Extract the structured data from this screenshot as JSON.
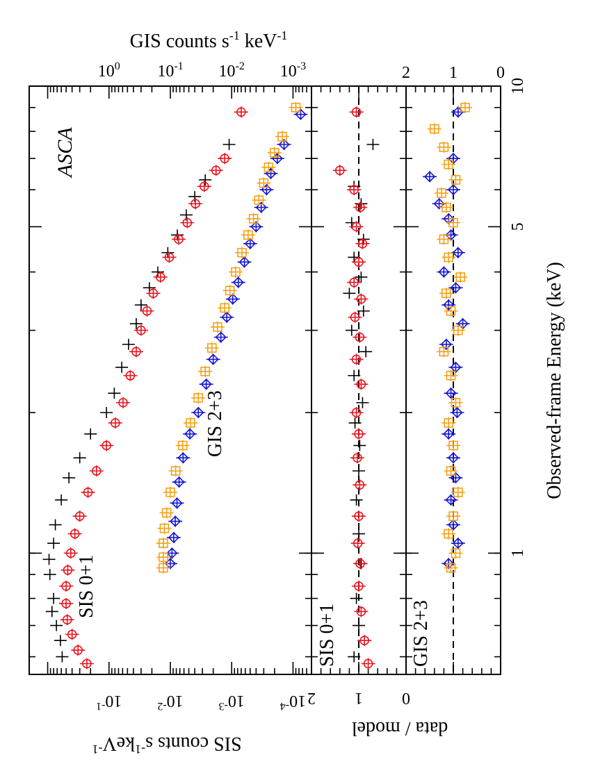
{
  "chart_data": {
    "type": "scatter",
    "orientation": "rotated 90 degrees counter-clockwise (energy axis runs vertically, increasing upward)",
    "instrument_label": "ASCA",
    "energy_axis": {
      "label": "Observed-frame Energy  (keV)",
      "scale": "log",
      "range_keV": [
        0.55,
        10
      ],
      "major_ticks": [
        1,
        5,
        10
      ],
      "tick_labels": [
        "1",
        "5",
        "10"
      ]
    },
    "panels": [
      {
        "name": "spectrum",
        "sis_axis": {
          "label_main": "SIS  counts  s",
          "label_exp1": "-1",
          "label_mid": "keV",
          "label_exp2": "-1",
          "scale": "log",
          "range": [
            5e-05,
            2
          ],
          "tick_values": [
            0.1,
            0.01,
            0.001,
            0.0001
          ],
          "tick_base": "10",
          "tick_exponents": [
            "-1",
            "-2",
            "-3",
            "-4"
          ]
        },
        "gis_axis": {
          "label_main": "GIS  counts  s",
          "label_exp1": "-1",
          "label_mid": "  keV",
          "label_exp2": "-1",
          "scale": "log",
          "range": [
            0.0005,
            20
          ],
          "tick_values": [
            1,
            0.1,
            0.01,
            0.001
          ],
          "tick_base": "10",
          "tick_exponents": [
            "0",
            "-1",
            "-2",
            "-3"
          ]
        },
        "annotations": [
          "SIS 0+1",
          "GIS 2+3"
        ],
        "series": [
          {
            "name": "SIS0",
            "color": "#000000",
            "marker": "cross",
            "x": [
              0.6,
              0.65,
              0.7,
              0.75,
              0.8,
              0.9,
              0.97,
              1.05,
              1.15,
              1.3,
              1.45,
              1.6,
              1.8,
              2.0,
              2.2,
              2.5,
              2.8,
              3.1,
              3.4,
              3.7,
              4.0,
              4.4,
              4.8,
              5.3,
              5.8,
              6.3,
              7.5
            ],
            "y": [
              0.58,
              0.62,
              0.72,
              0.85,
              0.8,
              0.92,
              0.95,
              0.8,
              0.75,
              0.6,
              0.45,
              0.3,
              0.2,
              0.11,
              0.082,
              0.062,
              0.048,
              0.036,
              0.03,
              0.022,
              0.016,
              0.011,
              0.0077,
              0.0055,
              0.004,
              0.0027,
              0.0011
            ]
          },
          {
            "name": "SIS1",
            "color": "#e8141e",
            "marker": "circle-plus",
            "x": [
              0.58,
              0.62,
              0.67,
              0.72,
              0.78,
              0.85,
              0.92,
              1.0,
              1.1,
              1.2,
              1.35,
              1.5,
              1.7,
              1.9,
              2.1,
              2.4,
              2.7,
              3.0,
              3.3,
              3.6,
              3.9,
              4.3,
              4.7,
              5.1,
              5.6,
              6.1,
              6.6,
              7.0,
              8.8
            ],
            "y": [
              0.23,
              0.32,
              0.4,
              0.48,
              0.5,
              0.5,
              0.47,
              0.42,
              0.36,
              0.3,
              0.22,
              0.16,
              0.11,
              0.079,
              0.059,
              0.045,
              0.036,
              0.03,
              0.024,
              0.019,
              0.0145,
              0.0104,
              0.0073,
              0.0053,
              0.0039,
              0.0028,
              0.0018,
              0.0013,
              0.0007
            ]
          },
          {
            "name": "GIS2",
            "color": "#1414d2",
            "marker": "diamond-plus",
            "x": [
              0.95,
              1.0,
              1.08,
              1.17,
              1.28,
              1.42,
              1.6,
              1.8,
              2.0,
              2.3,
              2.6,
              2.9,
              3.2,
              3.5,
              3.8,
              4.2,
              4.6,
              5.0,
              5.5,
              6.0,
              6.5,
              7.0,
              7.5,
              8.7
            ],
            "y": [
              0.1,
              0.094,
              0.088,
              0.083,
              0.078,
              0.072,
              0.062,
              0.048,
              0.035,
              0.026,
              0.02,
              0.015,
              0.012,
              0.0096,
              0.0078,
              0.0062,
              0.005,
              0.004,
              0.0033,
              0.0027,
              0.0023,
              0.0018,
              0.0014,
              0.00075
            ]
          },
          {
            "name": "GIS3",
            "color": "#f5a015",
            "marker": "square-plus",
            "x": [
              0.93,
              0.98,
              1.05,
              1.13,
              1.22,
              1.35,
              1.5,
              1.7,
              1.9,
              2.15,
              2.45,
              2.75,
              3.05,
              3.35,
              3.65,
              4.0,
              4.4,
              4.8,
              5.2,
              5.7,
              6.2,
              6.7,
              7.2,
              7.8,
              9.0
            ],
            "y": [
              0.13,
              0.13,
              0.13,
              0.125,
              0.115,
              0.1,
              0.082,
              0.063,
              0.047,
              0.035,
              0.027,
              0.021,
              0.017,
              0.013,
              0.0107,
              0.0086,
              0.0068,
              0.0054,
              0.0044,
              0.0036,
              0.003,
              0.0025,
              0.002,
              0.0015,
              0.0009
            ]
          }
        ]
      },
      {
        "name": "SIS ratio",
        "label": "SIS 0+1",
        "ratio_axis": {
          "range": [
            0,
            2
          ],
          "tick_labels": [
            "2",
            "1",
            "0"
          ]
        },
        "reference_line": 1,
        "series": [
          {
            "name": "SIS0",
            "color": "#000000",
            "marker": "cross",
            "x": [
              0.6,
              0.7,
              0.8,
              0.95,
              1.1,
              1.3,
              1.5,
              1.7,
              1.9,
              2.1,
              2.4,
              2.7,
              3.0,
              3.3,
              3.6,
              3.9,
              4.3,
              4.7,
              5.1,
              5.6,
              6.1,
              7.5
            ],
            "y": [
              1.1,
              1.0,
              1.05,
              0.95,
              1.0,
              1.05,
              1.0,
              0.98,
              1.08,
              0.92,
              1.1,
              0.85,
              1.15,
              0.9,
              1.2,
              0.95,
              1.1,
              0.9,
              1.15,
              0.95,
              1.1,
              0.7
            ]
          },
          {
            "name": "SIS1",
            "color": "#e8141e",
            "marker": "circle-plus",
            "x": [
              0.58,
              0.65,
              0.75,
              0.85,
              0.95,
              1.05,
              1.2,
              1.4,
              1.6,
              1.8,
              2.0,
              2.3,
              2.6,
              2.9,
              3.2,
              3.5,
              3.8,
              4.2,
              4.6,
              5.0,
              5.5,
              6.0,
              6.6,
              8.8
            ],
            "y": [
              0.8,
              0.88,
              0.95,
              1.0,
              0.97,
              1.02,
              1.0,
              0.98,
              1.03,
              1.0,
              1.05,
              0.95,
              1.05,
              0.98,
              1.08,
              0.95,
              1.1,
              1.0,
              0.92,
              1.05,
              0.97,
              1.1,
              1.4,
              1.05
            ]
          }
        ]
      },
      {
        "name": "GIS ratio",
        "label": "GIS 2+3",
        "ratio_axis": {
          "range": [
            0,
            2
          ],
          "tick_labels": [
            "2",
            "1",
            "0"
          ]
        },
        "ylabel": "data / model",
        "reference_line": 1,
        "series": [
          {
            "name": "GIS2",
            "color": "#1414d2",
            "marker": "diamond-plus",
            "x": [
              0.95,
              1.05,
              1.15,
              1.3,
              1.45,
              1.6,
              1.8,
              2.0,
              2.2,
              2.5,
              2.8,
              3.1,
              3.4,
              3.7,
              4.0,
              4.4,
              4.8,
              5.2,
              5.6,
              6.0,
              6.4,
              7.0,
              8.8
            ],
            "y": [
              1.1,
              0.9,
              1.0,
              1.05,
              0.95,
              1.0,
              1.1,
              0.92,
              1.05,
              0.95,
              1.15,
              0.8,
              1.1,
              0.95,
              1.2,
              0.9,
              1.05,
              1.1,
              1.3,
              1.0,
              1.5,
              1.0,
              0.9
            ]
          },
          {
            "name": "GIS3",
            "color": "#f5a015",
            "marker": "square-plus",
            "x": [
              0.93,
              1.0,
              1.1,
              1.2,
              1.35,
              1.5,
              1.7,
              1.9,
              2.1,
              2.4,
              2.7,
              3.0,
              3.3,
              3.6,
              3.9,
              4.3,
              4.7,
              5.1,
              5.5,
              5.9,
              6.3,
              6.8,
              7.4,
              8.1,
              9.0
            ],
            "y": [
              1.05,
              0.95,
              1.1,
              1.0,
              0.9,
              1.05,
              1.0,
              1.1,
              0.95,
              1.05,
              1.2,
              0.9,
              1.05,
              1.15,
              0.85,
              1.1,
              1.2,
              1.0,
              1.15,
              1.25,
              0.95,
              1.1,
              1.2,
              1.4,
              0.75
            ]
          }
        ]
      }
    ]
  }
}
